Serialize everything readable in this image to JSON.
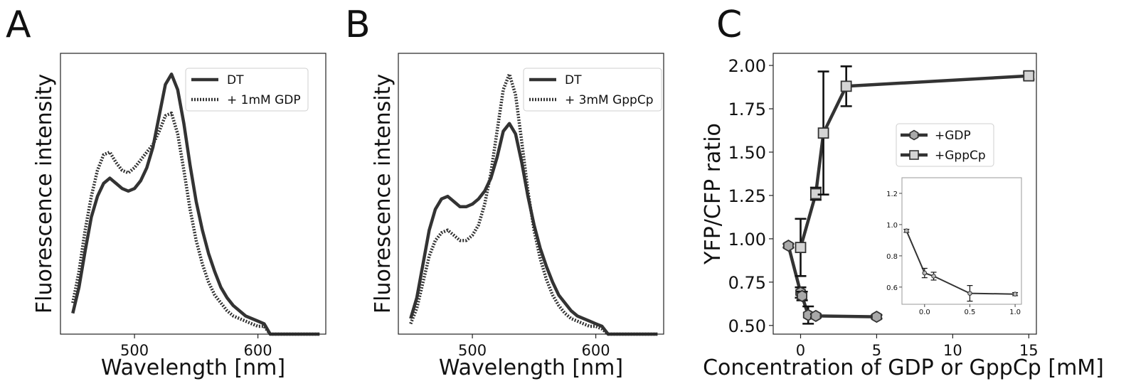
{
  "chart_data": [
    {
      "panel_label": "A",
      "type": "line",
      "xlabel": "Wavelength [nm]",
      "ylabel": "Fluorescence intensity",
      "xlim": [
        440,
        655
      ],
      "ylim": [
        0,
        1.08
      ],
      "xticks": [
        500,
        600
      ],
      "yticks": [],
      "legend_position": "top-right",
      "series": [
        {
          "name": "DT",
          "style": "solid",
          "x": [
            450,
            455,
            460,
            465,
            470,
            475,
            480,
            485,
            490,
            495,
            500,
            505,
            510,
            515,
            520,
            525,
            530,
            535,
            540,
            545,
            550,
            555,
            560,
            565,
            570,
            575,
            580,
            585,
            590,
            595,
            600,
            605,
            610,
            620,
            630,
            640,
            650
          ],
          "y": [
            0.08,
            0.18,
            0.32,
            0.45,
            0.53,
            0.58,
            0.6,
            0.58,
            0.56,
            0.55,
            0.56,
            0.59,
            0.64,
            0.72,
            0.84,
            0.96,
            1.0,
            0.94,
            0.81,
            0.65,
            0.51,
            0.4,
            0.31,
            0.24,
            0.18,
            0.14,
            0.11,
            0.09,
            0.07,
            0.06,
            0.05,
            0.04,
            0.0,
            0.0,
            0.0,
            0.0,
            0.0
          ]
        },
        {
          "name": "+ 1mM GDP",
          "style": "dotted",
          "x": [
            450,
            455,
            460,
            465,
            470,
            475,
            480,
            485,
            490,
            495,
            500,
            505,
            510,
            515,
            520,
            525,
            530,
            535,
            540,
            545,
            550,
            555,
            560,
            565,
            570,
            575,
            580,
            585,
            590,
            595,
            600,
            605,
            610,
            620,
            630,
            640,
            650
          ],
          "y": [
            0.12,
            0.24,
            0.4,
            0.53,
            0.63,
            0.69,
            0.7,
            0.66,
            0.63,
            0.62,
            0.64,
            0.67,
            0.7,
            0.73,
            0.78,
            0.84,
            0.85,
            0.77,
            0.63,
            0.48,
            0.36,
            0.27,
            0.2,
            0.15,
            0.12,
            0.09,
            0.07,
            0.06,
            0.05,
            0.04,
            0.03,
            0.03,
            0.0,
            0.0,
            0.0,
            0.0,
            0.0
          ]
        }
      ]
    },
    {
      "panel_label": "B",
      "type": "line",
      "xlabel": "Wavelength [nm]",
      "ylabel": "Fluorescence intensity",
      "xlim": [
        440,
        655
      ],
      "ylim": [
        0,
        1.08
      ],
      "xticks": [
        500,
        600
      ],
      "yticks": [],
      "legend_position": "top-right",
      "series": [
        {
          "name": "DT",
          "style": "solid",
          "x": [
            450,
            455,
            460,
            465,
            470,
            475,
            480,
            485,
            490,
            495,
            500,
            505,
            510,
            515,
            520,
            525,
            530,
            535,
            540,
            545,
            550,
            555,
            560,
            565,
            570,
            575,
            580,
            585,
            590,
            595,
            600,
            605,
            610,
            620,
            630,
            640,
            650
          ],
          "y": [
            0.06,
            0.14,
            0.27,
            0.4,
            0.48,
            0.52,
            0.53,
            0.51,
            0.49,
            0.49,
            0.5,
            0.52,
            0.55,
            0.6,
            0.68,
            0.78,
            0.81,
            0.77,
            0.66,
            0.53,
            0.42,
            0.33,
            0.26,
            0.2,
            0.15,
            0.12,
            0.09,
            0.07,
            0.06,
            0.05,
            0.04,
            0.03,
            0.0,
            0.0,
            0.0,
            0.0,
            0.0
          ]
        },
        {
          "name": "+ 3mM GppCp",
          "style": "dotted",
          "x": [
            450,
            455,
            460,
            465,
            470,
            475,
            480,
            485,
            490,
            495,
            500,
            505,
            510,
            515,
            520,
            525,
            530,
            535,
            540,
            545,
            550,
            555,
            560,
            565,
            570,
            575,
            580,
            585,
            590,
            595,
            600,
            605,
            610,
            620,
            630,
            640,
            650
          ],
          "y": [
            0.04,
            0.1,
            0.2,
            0.3,
            0.36,
            0.39,
            0.4,
            0.38,
            0.36,
            0.36,
            0.38,
            0.42,
            0.5,
            0.62,
            0.78,
            0.94,
            1.0,
            0.92,
            0.74,
            0.55,
            0.4,
            0.29,
            0.21,
            0.15,
            0.11,
            0.08,
            0.06,
            0.05,
            0.04,
            0.03,
            0.03,
            0.02,
            0.0,
            0.0,
            0.0,
            0.0,
            0.0
          ]
        }
      ]
    },
    {
      "panel_label": "C",
      "type": "line",
      "xlabel": "Concentration of GDP or GppCp [mM]",
      "ylabel": "YFP/CFP ratio",
      "xlim": [
        -1.8,
        15.5
      ],
      "ylim": [
        0.45,
        2.07
      ],
      "xticks": [
        0,
        5,
        10,
        15
      ],
      "yticks": [
        0.5,
        0.75,
        1.0,
        1.25,
        1.5,
        1.75,
        2.0
      ],
      "ytick_labels": [
        "0.50",
        "0.75",
        "1.00",
        "1.25",
        "1.50",
        "1.75",
        "2.00"
      ],
      "legend_position": "center-right",
      "series": [
        {
          "name": "+GDP",
          "marker": "hexagon",
          "x": [
            -0.8,
            0,
            0.1,
            0.5,
            1,
            5
          ],
          "y": [
            0.96,
            0.69,
            0.67,
            0.56,
            0.555,
            0.55
          ],
          "yerr": [
            0.01,
            0.03,
            0.025,
            0.05,
            0.01,
            0.01
          ]
        },
        {
          "name": "+GppCp",
          "marker": "square",
          "x": [
            0,
            1,
            1.5,
            3,
            15
          ],
          "y": [
            0.95,
            1.26,
            1.61,
            1.88,
            1.94
          ],
          "yerr": [
            0.165,
            0.035,
            0.355,
            0.115,
            0.02
          ]
        }
      ],
      "inset": {
        "type": "line",
        "xlim": [
          -0.25,
          1.07
        ],
        "ylim": [
          0.49,
          1.3
        ],
        "xticks": [
          0.0,
          0.5,
          1.0
        ],
        "xtick_labels": [
          "0.0",
          "0.5",
          "1.0"
        ],
        "yticks": [
          0.6,
          0.8,
          1.0,
          1.2
        ],
        "ytick_labels": [
          "0.6",
          "0.8",
          "1.0",
          "1.2"
        ],
        "series": [
          {
            "name": "+GDP",
            "x": [
              -0.2,
              0,
              0.1,
              0.5,
              1
            ],
            "y": [
              0.96,
              0.69,
              0.67,
              0.56,
              0.555
            ],
            "yerr": [
              0.01,
              0.03,
              0.025,
              0.05,
              0.01
            ]
          }
        ]
      }
    }
  ]
}
